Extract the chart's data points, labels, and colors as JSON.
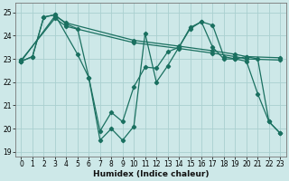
{
  "xlabel": "Humidex (Indice chaleur)",
  "bg_color": "#cde8e8",
  "grid_color": "#aad0d0",
  "line_color": "#1a7060",
  "xlim": [
    -0.5,
    23.5
  ],
  "ylim": [
    18.8,
    25.4
  ],
  "yticks": [
    19,
    20,
    21,
    22,
    23,
    24,
    25
  ],
  "xticks": [
    0,
    1,
    2,
    3,
    4,
    5,
    6,
    7,
    8,
    9,
    10,
    11,
    12,
    13,
    14,
    15,
    16,
    17,
    18,
    19,
    20,
    21,
    22,
    23
  ],
  "series": [
    {
      "x": [
        0,
        3,
        4,
        10,
        14,
        17,
        19,
        20,
        23
      ],
      "y": [
        22.9,
        24.85,
        24.55,
        23.8,
        23.55,
        23.35,
        23.2,
        23.1,
        23.05
      ]
    },
    {
      "x": [
        0,
        3,
        4,
        10,
        14,
        17,
        19,
        20,
        23
      ],
      "y": [
        22.95,
        24.75,
        24.4,
        23.7,
        23.45,
        23.25,
        23.1,
        23.0,
        22.95
      ]
    },
    {
      "x": [
        0,
        1,
        2,
        3,
        4,
        5,
        6,
        7,
        8,
        9,
        10,
        11,
        12,
        13,
        14,
        15,
        16,
        17,
        18,
        19,
        20,
        21,
        22,
        23
      ],
      "y": [
        22.9,
        23.1,
        24.8,
        24.9,
        24.5,
        24.3,
        22.2,
        19.5,
        20.0,
        19.5,
        20.1,
        24.1,
        22.0,
        22.7,
        23.5,
        24.3,
        24.6,
        23.5,
        23.0,
        23.0,
        22.9,
        21.5,
        20.3,
        19.8
      ]
    },
    {
      "x": [
        0,
        1,
        2,
        3,
        5,
        6,
        7,
        8,
        9,
        10,
        11,
        12,
        13,
        14,
        15,
        16,
        17,
        18,
        19,
        20,
        21,
        22,
        23
      ],
      "y": [
        22.9,
        23.1,
        24.8,
        24.9,
        23.2,
        22.2,
        19.9,
        20.7,
        20.3,
        21.8,
        22.65,
        22.6,
        23.3,
        23.5,
        24.35,
        24.6,
        24.45,
        23.1,
        23.0,
        23.1,
        23.0,
        20.3,
        19.8
      ]
    }
  ]
}
